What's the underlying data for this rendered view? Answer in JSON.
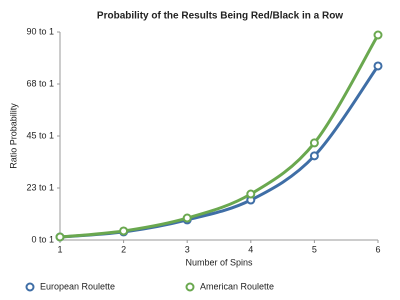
{
  "chart_data": {
    "type": "line",
    "title": "Probability of the Results Being Red/Black in a Row",
    "x_label": "Number of Spins",
    "y_label": "Ratio Probability",
    "x": [
      1,
      2,
      3,
      4,
      5,
      6
    ],
    "xlim": [
      1,
      6
    ],
    "xticks": [
      1,
      2,
      3,
      4,
      5,
      6
    ],
    "ylim": [
      0,
      90
    ],
    "yticks": [
      {
        "value": 0,
        "label": "0 to 1"
      },
      {
        "value": 22.5,
        "label": "23 to 1"
      },
      {
        "value": 45,
        "label": "45 to 1"
      },
      {
        "value": 67.5,
        "label": "68 to 1"
      },
      {
        "value": 90,
        "label": "90 to 1"
      }
    ],
    "grid": false,
    "legend": "bottom",
    "series": [
      {
        "name": "European Roulette",
        "color": "#3f6ea6",
        "values": [
          1.3,
          3.5,
          8.7,
          17.3,
          36.4,
          75.3
        ]
      },
      {
        "name": "American Roulette",
        "color": "#6aa84f",
        "values": [
          1.3,
          3.9,
          9.5,
          19.9,
          42,
          88.7
        ]
      }
    ]
  }
}
